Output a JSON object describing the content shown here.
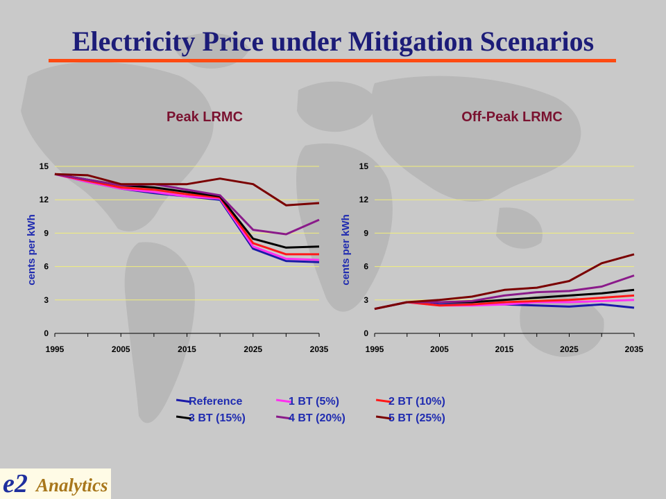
{
  "slide": {
    "title": "Electricity Price under Mitigation Scenarios"
  },
  "logo": {
    "mark": "e2",
    "text": "Analytics"
  },
  "colors": {
    "title": "#1c1c78",
    "title_rule": "#ff4a12",
    "chart_title": "#7a1230",
    "axis_label": "#1f2bb0",
    "gridline": "#f2ee7a"
  },
  "legend": [
    {
      "label": "Reference",
      "color": "#1a1aa8"
    },
    {
      "label": "1 BT (5%)",
      "color": "#ff30f0"
    },
    {
      "label": "2 BT (10%)",
      "color": "#ff1818"
    },
    {
      "label": "3 BT (15%)",
      "color": "#000000"
    },
    {
      "label": "4 BT (20%)",
      "color": "#8a1a8a"
    },
    {
      "label": "5 BT (25%)",
      "color": "#7a0000"
    }
  ],
  "chart_data": [
    {
      "type": "line",
      "title": "Peak LRMC",
      "ylabel": "cents per kWh",
      "xlabel": "",
      "ylim": [
        0,
        15
      ],
      "yticks": [
        0,
        3,
        6,
        9,
        12,
        15
      ],
      "xlim": [
        1995,
        2035
      ],
      "xticks": [
        1995,
        2005,
        2015,
        2025,
        2035
      ],
      "grid": true,
      "x": [
        1995,
        2000,
        2005,
        2010,
        2015,
        2020,
        2025,
        2030,
        2035
      ],
      "series": [
        {
          "name": "Reference",
          "color": "#1a1aa8",
          "values": [
            14.3,
            13.6,
            13.0,
            12.6,
            12.3,
            12.0,
            7.6,
            6.5,
            6.4
          ]
        },
        {
          "name": "1 BT (5%)",
          "color": "#ff30f0",
          "values": [
            14.3,
            13.6,
            13.0,
            12.7,
            12.3,
            12.1,
            7.8,
            6.7,
            6.6
          ]
        },
        {
          "name": "2 BT (10%)",
          "color": "#ff1818",
          "values": [
            14.3,
            13.7,
            13.1,
            12.9,
            12.5,
            12.2,
            8.1,
            7.1,
            7.1
          ]
        },
        {
          "name": "3 BT (15%)",
          "color": "#000000",
          "values": [
            14.3,
            13.8,
            13.3,
            13.1,
            12.7,
            12.3,
            8.5,
            7.7,
            7.8
          ]
        },
        {
          "name": "4 BT (20%)",
          "color": "#8a1a8a",
          "values": [
            14.3,
            13.8,
            13.3,
            13.4,
            12.9,
            12.4,
            9.3,
            8.9,
            10.2
          ]
        },
        {
          "name": "5 BT (25%)",
          "color": "#7a0000",
          "values": [
            14.3,
            14.2,
            13.4,
            13.4,
            13.4,
            13.9,
            13.4,
            11.5,
            11.7
          ]
        }
      ]
    },
    {
      "type": "line",
      "title": "Off-Peak LRMC",
      "ylabel": "cents per kWh",
      "xlabel": "",
      "ylim": [
        0,
        15
      ],
      "yticks": [
        0,
        3,
        6,
        9,
        12,
        15
      ],
      "xlim": [
        1995,
        2035
      ],
      "xticks": [
        1995,
        2005,
        2015,
        2025,
        2035
      ],
      "grid": true,
      "x": [
        1995,
        2000,
        2005,
        2010,
        2015,
        2020,
        2025,
        2030,
        2035
      ],
      "series": [
        {
          "name": "Reference",
          "color": "#1a1aa8",
          "values": [
            2.2,
            2.8,
            2.6,
            2.6,
            2.6,
            2.5,
            2.4,
            2.6,
            2.3
          ]
        },
        {
          "name": "1 BT (5%)",
          "color": "#ff30f0",
          "values": [
            2.2,
            2.8,
            2.5,
            2.5,
            2.6,
            2.8,
            2.8,
            2.9,
            3.0
          ]
        },
        {
          "name": "2 BT (10%)",
          "color": "#ff1818",
          "values": [
            2.2,
            2.8,
            2.5,
            2.6,
            2.8,
            2.9,
            3.0,
            3.2,
            3.4
          ]
        },
        {
          "name": "3 BT (15%)",
          "color": "#000000",
          "values": [
            2.2,
            2.8,
            2.8,
            2.8,
            3.0,
            3.2,
            3.4,
            3.6,
            3.9
          ]
        },
        {
          "name": "4 BT (20%)",
          "color": "#8a1a8a",
          "values": [
            2.2,
            2.8,
            2.8,
            2.9,
            3.4,
            3.7,
            3.8,
            4.2,
            5.2
          ]
        },
        {
          "name": "5 BT (25%)",
          "color": "#7a0000",
          "values": [
            2.2,
            2.8,
            3.0,
            3.3,
            3.9,
            4.1,
            4.7,
            6.3,
            7.1
          ]
        }
      ]
    }
  ]
}
